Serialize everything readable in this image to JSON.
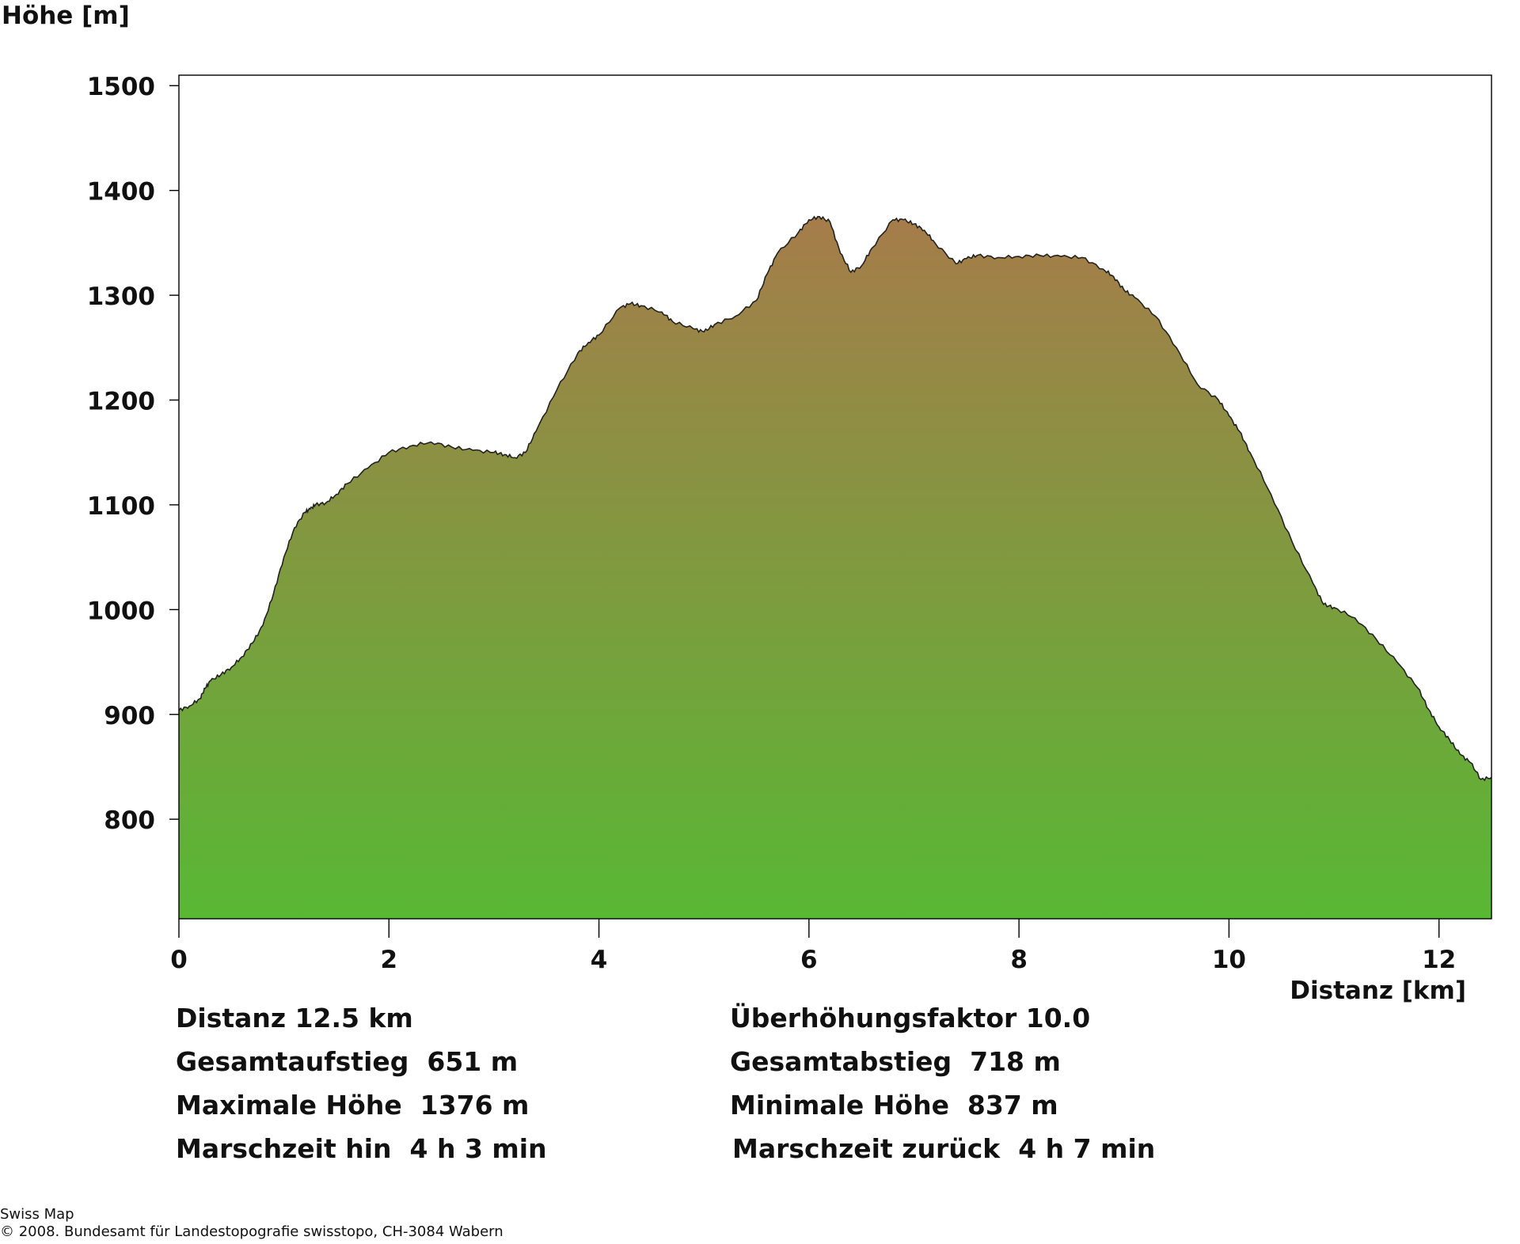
{
  "chart_data": {
    "type": "area",
    "ylabel": "Höhe [m]",
    "xlabel": "Distanz [km]",
    "xlim": [
      0,
      12.5
    ],
    "ylim": [
      705,
      1510
    ],
    "xticks": [
      0,
      2,
      4,
      6,
      8,
      10,
      12
    ],
    "yticks": [
      800,
      900,
      1000,
      1100,
      1200,
      1300,
      1400,
      1500
    ],
    "grid": false,
    "series": [
      {
        "x": [
          0,
          0.1,
          0.2,
          0.25,
          0.3,
          0.4,
          0.5,
          0.6,
          0.7,
          0.8,
          0.9,
          1.0,
          1.1,
          1.2,
          1.25,
          1.3,
          1.4,
          1.5,
          1.6,
          1.8,
          2.0,
          2.2,
          2.4,
          2.6,
          2.8,
          3.0,
          3.1,
          3.2,
          3.3,
          3.4,
          3.6,
          3.8,
          3.9,
          4.0,
          4.2,
          4.3,
          4.4,
          4.6,
          4.7,
          4.9,
          5.0,
          5.1,
          5.3,
          5.5,
          5.6,
          5.7,
          5.9,
          6.0,
          6.1,
          6.2,
          6.3,
          6.4,
          6.5,
          6.6,
          6.8,
          6.9,
          7.0,
          7.1,
          7.2,
          7.4,
          7.5,
          7.6,
          7.8,
          8.0,
          8.2,
          8.4,
          8.6,
          8.8,
          8.9,
          9.0,
          9.1,
          9.3,
          9.5,
          9.7,
          9.9,
          10.0,
          10.1,
          10.2,
          10.4,
          10.6,
          10.8,
          10.9,
          11.0,
          11.2,
          11.4,
          11.6,
          11.8,
          11.9,
          12.0,
          12.1,
          12.2,
          12.3,
          12.4,
          12.5
        ],
        "y": [
          904,
          908,
          915,
          925,
          932,
          938,
          945,
          955,
          968,
          985,
          1015,
          1050,
          1078,
          1093,
          1096,
          1100,
          1102,
          1110,
          1120,
          1135,
          1150,
          1156,
          1160,
          1155,
          1152,
          1150,
          1148,
          1145,
          1150,
          1170,
          1210,
          1245,
          1255,
          1262,
          1288,
          1292,
          1290,
          1284,
          1275,
          1268,
          1265,
          1272,
          1280,
          1295,
          1320,
          1340,
          1360,
          1372,
          1375,
          1370,
          1340,
          1322,
          1328,
          1345,
          1372,
          1372,
          1368,
          1362,
          1350,
          1330,
          1335,
          1338,
          1336,
          1337,
          1338,
          1337,
          1336,
          1325,
          1318,
          1305,
          1298,
          1280,
          1250,
          1215,
          1200,
          1185,
          1170,
          1150,
          1110,
          1065,
          1025,
          1005,
          1002,
          992,
          972,
          950,
          925,
          905,
          888,
          876,
          862,
          854,
          838,
          840
        ]
      }
    ]
  },
  "stats": {
    "distance": "Distanz 12.5 km",
    "exaggeration": "Überhöhungsfaktor 10.0",
    "ascent": "Gesamtaufstieg  651 m",
    "descent": "Gesamtabstieg  718 m",
    "max_height": "Maximale Höhe  1376 m",
    "min_height": "Minimale Höhe  837 m",
    "time_there": "Marschzeit hin  4 h 3 min",
    "time_back": "Marschzeit zurück  4 h 7 min"
  },
  "footer": {
    "line1": "Swiss Map",
    "line2": "© 2008. Bundesamt für Landestopografie swisstopo, CH-3084 Wabern"
  },
  "colors": {
    "fill_top": "#a67c4a",
    "fill_bottom": "#58b834",
    "outline": "#222222"
  }
}
